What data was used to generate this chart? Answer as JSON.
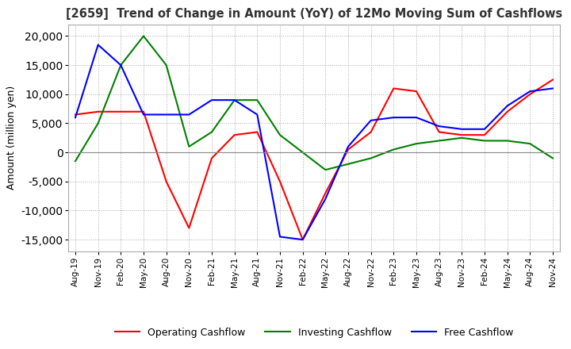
{
  "title": "[2659]  Trend of Change in Amount (YoY) of 12Mo Moving Sum of Cashflows",
  "ylabel": "Amount (million yen)",
  "ylim": [
    -17000,
    22000
  ],
  "yticks": [
    -15000,
    -10000,
    -5000,
    0,
    5000,
    10000,
    15000,
    20000
  ],
  "x_labels": [
    "Aug-19",
    "Nov-19",
    "Feb-20",
    "May-20",
    "Aug-20",
    "Nov-20",
    "Feb-21",
    "May-21",
    "Aug-21",
    "Nov-21",
    "Feb-22",
    "May-22",
    "Aug-22",
    "Nov-22",
    "Feb-23",
    "May-23",
    "Aug-23",
    "Nov-23",
    "Feb-24",
    "May-24",
    "Aug-24",
    "Nov-24"
  ],
  "operating": [
    6500,
    7000,
    7000,
    7000,
    -5000,
    -13000,
    -1000,
    3000,
    3500,
    -5000,
    -15000,
    -7000,
    500,
    3500,
    11000,
    10500,
    3500,
    3000,
    3000,
    7000,
    10000,
    12500
  ],
  "investing": [
    -1500,
    5000,
    15000,
    20000,
    15000,
    1000,
    3500,
    9000,
    9000,
    3000,
    0,
    -3000,
    -2000,
    -1000,
    500,
    1500,
    2000,
    2500,
    2000,
    2000,
    1500,
    -1000
  ],
  "free": [
    6000,
    18500,
    15000,
    6500,
    6500,
    6500,
    9000,
    9000,
    6500,
    -14500,
    -15000,
    -8000,
    1000,
    5500,
    6000,
    6000,
    4500,
    4000,
    4000,
    8000,
    10500,
    11000
  ],
  "operating_color": "#ff0000",
  "investing_color": "#008000",
  "free_color": "#0000ff",
  "bg_color": "#ffffff",
  "grid_color": "#aaaaaa"
}
